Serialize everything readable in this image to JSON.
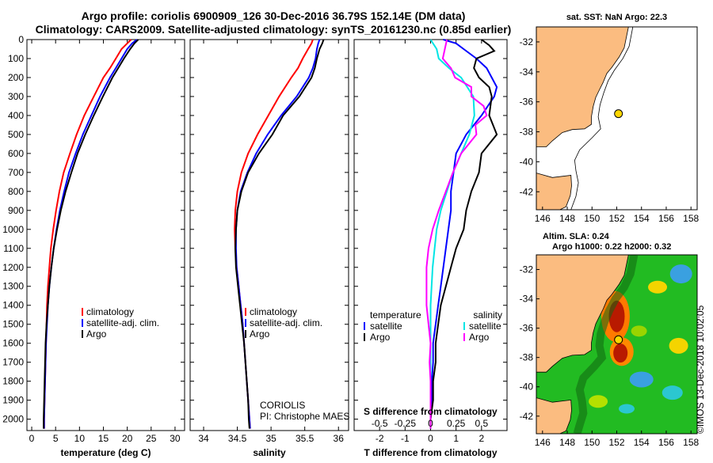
{
  "header": {
    "line1": "Argo profile: coriolis 6900909_126 30-Dec-2016 36.79S 152.14E (DM data)",
    "line2": "Climatology: CARS2009. Satellite-adjusted climatology: synTS_20161230.nc (0.85d earlier)"
  },
  "depth_axis": {
    "ylim": [
      2060,
      0
    ],
    "ticks": [
      0,
      100,
      200,
      300,
      400,
      500,
      600,
      700,
      800,
      900,
      1000,
      1100,
      1200,
      1300,
      1400,
      1500,
      1600,
      1700,
      1800,
      1900,
      2000
    ]
  },
  "chart_data": [
    {
      "type": "line",
      "id": "temperature",
      "xlabel": "temperature (deg C)",
      "xlim": [
        -1,
        32
      ],
      "xticks": [
        0,
        5,
        10,
        15,
        20,
        25,
        30
      ],
      "legend": [
        "climatology",
        "satellite-adj. clim.",
        "Argo"
      ],
      "series": [
        {
          "name": "climatology",
          "color": "#ff0000",
          "depth": [
            0,
            20,
            50,
            100,
            150,
            200,
            300,
            400,
            500,
            600,
            700,
            800,
            900,
            1000,
            1100,
            1200,
            1300,
            1400,
            1500,
            1600,
            1700,
            1800,
            1900,
            2000,
            2050
          ],
          "values": [
            20.8,
            20.0,
            18.8,
            17.6,
            16.4,
            15.0,
            13.0,
            11.0,
            9.4,
            8.0,
            6.7,
            5.8,
            5.1,
            4.5,
            4.0,
            3.7,
            3.4,
            3.2,
            3.1,
            3.0,
            2.9,
            2.8,
            2.7,
            2.6,
            2.6
          ]
        },
        {
          "name": "satellite-adj. clim.",
          "color": "#0000ff",
          "depth": [
            0,
            20,
            50,
            100,
            150,
            200,
            300,
            400,
            500,
            600,
            700,
            800,
            900,
            1000,
            1100,
            1200,
            1300,
            1400,
            1500,
            1600,
            1700,
            1800,
            1900,
            2000,
            2050
          ],
          "values": [
            22.0,
            21.0,
            20.0,
            18.8,
            17.6,
            16.4,
            14.3,
            12.5,
            10.7,
            9.2,
            7.8,
            6.8,
            5.9,
            5.2,
            4.6,
            4.1,
            3.7,
            3.4,
            3.2,
            3.0,
            2.9,
            2.8,
            2.7,
            2.6,
            2.6
          ]
        },
        {
          "name": "Argo",
          "color": "#000000",
          "depth": [
            0,
            20,
            50,
            100,
            150,
            200,
            300,
            400,
            500,
            600,
            700,
            800,
            900,
            1000,
            1100,
            1200,
            1300,
            1400,
            1500,
            1600,
            1700,
            1800,
            1900,
            2000,
            2050
          ],
          "values": [
            22.3,
            21.5,
            20.6,
            19.3,
            18.1,
            16.9,
            14.9,
            13.0,
            11.2,
            9.6,
            8.3,
            7.1,
            6.1,
            5.3,
            4.6,
            4.1,
            3.7,
            3.4,
            3.1,
            2.9,
            2.8,
            2.7,
            2.6,
            2.5,
            2.5
          ]
        }
      ]
    },
    {
      "type": "line",
      "id": "salinity",
      "xlabel": "salinity",
      "xlim": [
        33.8,
        36.15
      ],
      "xticks": [
        34,
        34.5,
        35,
        35.5,
        36
      ],
      "xticklabels": [
        "34",
        "34.5",
        "35",
        "35.5",
        "36"
      ],
      "legend": [
        "climatology",
        "satellite-adj. clim.",
        "Argo"
      ],
      "annotation": [
        "CORIOLIS",
        "PI: Christophe MAES"
      ],
      "series": [
        {
          "name": "climatology",
          "color": "#ff0000",
          "depth": [
            0,
            20,
            50,
            100,
            150,
            200,
            300,
            400,
            500,
            600,
            700,
            800,
            900,
            1000,
            1100,
            1200,
            1300,
            1400,
            1500,
            1600,
            1700,
            1800,
            1900,
            2000,
            2050
          ],
          "values": [
            35.62,
            35.6,
            35.55,
            35.47,
            35.4,
            35.3,
            35.12,
            34.96,
            34.8,
            34.66,
            34.56,
            34.5,
            34.47,
            34.46,
            34.47,
            34.49,
            34.52,
            34.55,
            34.58,
            34.6,
            34.62,
            34.64,
            34.66,
            34.68,
            34.69
          ]
        },
        {
          "name": "satellite-adj. clim.",
          "color": "#0000ff",
          "depth": [
            0,
            20,
            50,
            100,
            150,
            200,
            300,
            400,
            500,
            600,
            700,
            800,
            900,
            1000,
            1100,
            1200,
            1300,
            1400,
            1500,
            1600,
            1700,
            1800,
            1900,
            2000,
            2050
          ],
          "values": [
            35.72,
            35.7,
            35.68,
            35.66,
            35.62,
            35.56,
            35.38,
            35.15,
            34.95,
            34.78,
            34.65,
            34.55,
            34.5,
            34.48,
            34.48,
            34.49,
            34.52,
            34.55,
            34.58,
            34.6,
            34.62,
            34.64,
            34.66,
            34.68,
            34.69
          ]
        },
        {
          "name": "Argo",
          "color": "#000000",
          "depth": [
            0,
            20,
            50,
            100,
            150,
            200,
            300,
            400,
            500,
            600,
            700,
            800,
            900,
            1000,
            1100,
            1200,
            1300,
            1400,
            1500,
            1600,
            1700,
            1800,
            1900,
            2000,
            2050
          ],
          "values": [
            35.78,
            35.76,
            35.72,
            35.68,
            35.65,
            35.6,
            35.42,
            35.18,
            35.02,
            34.82,
            34.66,
            34.56,
            34.5,
            34.48,
            34.47,
            34.48,
            34.51,
            34.54,
            34.57,
            34.6,
            34.62,
            34.64,
            34.66,
            34.67,
            34.68
          ]
        }
      ]
    },
    {
      "type": "line",
      "id": "difference",
      "xlabel": "T difference from climatology",
      "top_axis_label": "S difference from climatology",
      "xlim": [
        -3,
        3
      ],
      "xticks": [
        -2,
        -1,
        0,
        1,
        2
      ],
      "top_ticks": [
        -0.5,
        -0.25,
        0,
        0.25,
        0.5
      ],
      "top_ticklabels": [
        "-0.5",
        "-0.25",
        "0",
        "0.25",
        "0.5"
      ],
      "legend_left_title": "temperature",
      "legend_left": [
        "satellite",
        "Argo"
      ],
      "legend_right_title": "salinity",
      "legend_right": [
        "satellite",
        "Argo"
      ],
      "series": [
        {
          "name": "temperature satellite",
          "color": "#0000ff",
          "depth": [
            0,
            20,
            50,
            100,
            150,
            200,
            250,
            300,
            400,
            500,
            600,
            700,
            800,
            900,
            1000,
            1100,
            1200,
            1300,
            1400,
            1500,
            1600,
            1700,
            1800,
            1900,
            2000,
            2050
          ],
          "values": [
            0.5,
            1.0,
            1.3,
            1.8,
            2.2,
            2.4,
            2.6,
            2.5,
            2.0,
            1.4,
            1.0,
            0.9,
            0.8,
            0.8,
            0.7,
            0.6,
            0.5,
            0.4,
            0.3,
            0.2,
            0.1,
            0.1,
            0.05,
            0.05,
            0.0,
            0.0
          ]
        },
        {
          "name": "temperature Argo",
          "color": "#000000",
          "depth": [
            0,
            30,
            60,
            100,
            150,
            200,
            250,
            300,
            400,
            500,
            600,
            700,
            800,
            900,
            1000,
            1100,
            1200,
            1300,
            1400,
            1500,
            1600,
            1700,
            1800,
            1900,
            2000,
            2050
          ],
          "values": [
            2.0,
            2.3,
            2.5,
            1.8,
            1.7,
            1.9,
            2.3,
            2.4,
            2.3,
            2.6,
            2.0,
            1.9,
            1.6,
            1.4,
            1.3,
            1.0,
            0.8,
            0.6,
            0.4,
            0.3,
            0.2,
            0.2,
            0.1,
            0.1,
            0.0,
            0.0
          ]
        },
        {
          "name": "salinity satellite",
          "color": "#00e5e5",
          "depth": [
            0,
            50,
            100,
            150,
            200,
            300,
            400,
            500,
            600,
            700,
            800,
            900,
            1000,
            1100,
            1200,
            1300,
            1400,
            1500,
            1600,
            1700,
            1800,
            1900,
            2000,
            2050
          ],
          "values": [
            0.0,
            0.06,
            0.08,
            0.18,
            0.3,
            0.42,
            0.43,
            0.38,
            0.3,
            0.22,
            0.16,
            0.1,
            0.06,
            0.04,
            0.02,
            0.01,
            0.0,
            0.0,
            0.0,
            0.0,
            0.0,
            0.0,
            0.0,
            0.0
          ]
        },
        {
          "name": "salinity Argo",
          "color": "#ff00ff",
          "depth": [
            0,
            50,
            100,
            150,
            200,
            250,
            300,
            350,
            400,
            450,
            500,
            600,
            700,
            800,
            900,
            1000,
            1100,
            1200,
            1300,
            1400,
            1500,
            1600,
            1700,
            1800,
            1900,
            2000,
            2050
          ],
          "values": [
            0.16,
            0.14,
            0.12,
            0.2,
            0.24,
            0.4,
            0.4,
            0.52,
            0.55,
            0.44,
            0.45,
            0.3,
            0.22,
            0.15,
            0.08,
            0.02,
            -0.02,
            -0.04,
            -0.04,
            -0.04,
            -0.02,
            0.0,
            -0.01,
            0.0,
            0.0,
            0.0,
            0.0
          ]
        }
      ]
    },
    {
      "type": "map",
      "id": "sst_map",
      "title": "sat. SST: NaN Argo: 22.3",
      "lon_range": [
        145.5,
        158.5
      ],
      "lat_range": [
        -43.2,
        -31
      ],
      "xticks": [
        146,
        148,
        150,
        152,
        154,
        156,
        158
      ],
      "yticks": [
        -32,
        -34,
        -36,
        -38,
        -40,
        -42
      ],
      "argo_position": {
        "lon": 152.14,
        "lat": -36.79
      },
      "colors": {
        "land": "#fbbc80",
        "ocean": "#ffffff",
        "marker": "#ffd700"
      }
    },
    {
      "type": "heatmap",
      "id": "sla_map",
      "title_line1": "Altim. SLA: 0.24",
      "title_line2": "Argo h1000: 0.22 h2000: 0.32",
      "lon_range": [
        145.5,
        158.5
      ],
      "lat_range": [
        -43.2,
        -31
      ],
      "xticks": [
        146,
        148,
        150,
        152,
        154,
        156,
        158
      ],
      "yticks": [
        -32,
        -34,
        -36,
        -38,
        -40,
        -42
      ],
      "argo_position": {
        "lon": 152.14,
        "lat": -36.79
      },
      "colors": {
        "land": "#fbbc80",
        "base": "#22bb22",
        "marker": "#ffd700"
      }
    }
  ],
  "watermark": "©IMOS 13-Dec-2018 10:02:05"
}
